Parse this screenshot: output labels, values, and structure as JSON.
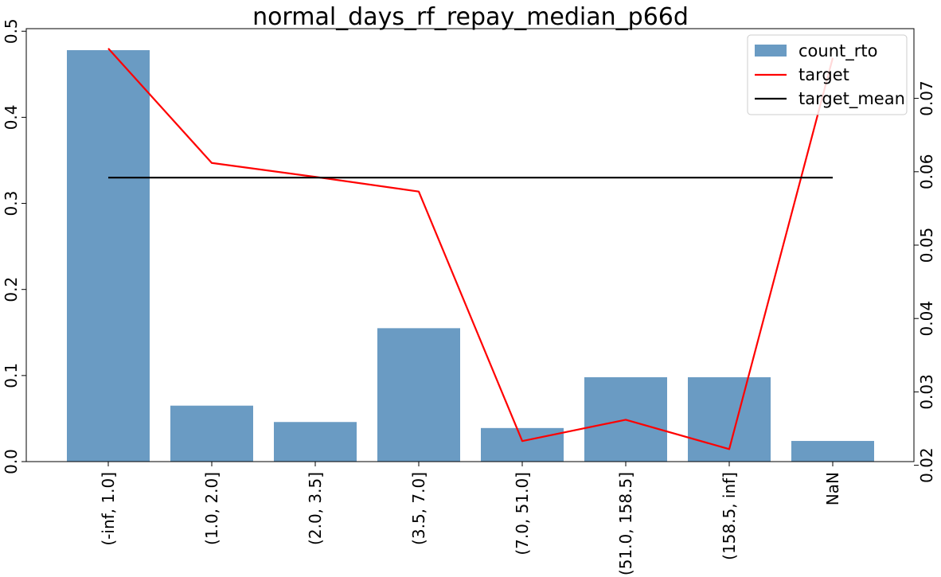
{
  "chart_data": {
    "type": "bar",
    "title": "normal_days_rf_repay_median_p66d",
    "categories": [
      "(-inf, 1.0]",
      "(1.0, 2.0]",
      "(2.0, 3.5]",
      "(3.5, 7.0]",
      "(7.0, 51.0]",
      "(51.0, 158.5]",
      "(158.5, inf]",
      "NaN"
    ],
    "series": [
      {
        "name": "count_rto",
        "type": "bar",
        "axis": "left",
        "color": "#6a9bc3",
        "values": [
          0.478,
          0.065,
          0.046,
          0.155,
          0.039,
          0.098,
          0.098,
          0.024
        ]
      },
      {
        "name": "target",
        "type": "line",
        "axis": "right",
        "color": "#ff0000",
        "values": [
          0.0768,
          0.0612,
          0.0593,
          0.0573,
          0.0233,
          0.0262,
          0.0222,
          0.0755
        ]
      },
      {
        "name": "target_mean",
        "type": "line",
        "axis": "right",
        "color": "#000000",
        "values": [
          0.0592,
          0.0592,
          0.0592,
          0.0592,
          0.0592,
          0.0592,
          0.0592,
          0.0592
        ]
      }
    ],
    "y_left": {
      "lim": [
        0,
        0.503
      ],
      "ticks": [
        "0.0",
        "0.1",
        "0.2",
        "0.3",
        "0.4",
        "0.5"
      ]
    },
    "y_right": {
      "lim": [
        0.0205,
        0.0795
      ],
      "ticks": [
        "0.02",
        "0.03",
        "0.04",
        "0.05",
        "0.06",
        "0.07"
      ]
    },
    "legend": {
      "placement": "top-right",
      "entries": [
        "count_rto",
        "target",
        "target_mean"
      ]
    },
    "grid": false
  }
}
